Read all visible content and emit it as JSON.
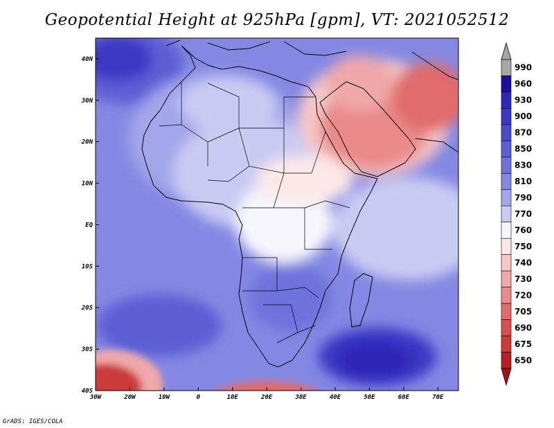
{
  "title": "Geopotential Height at 925hPa [gpm], VT: 2021052512",
  "credit": "GrADS: IGES/COLA",
  "map": {
    "lon_range": [
      -30,
      76
    ],
    "lat_range": [
      -40,
      45
    ],
    "lat_ticks": [
      {
        "value": 40,
        "label": "40N"
      },
      {
        "value": 30,
        "label": "30N"
      },
      {
        "value": 20,
        "label": "20N"
      },
      {
        "value": 10,
        "label": "10N"
      },
      {
        "value": 0,
        "label": "EQ"
      },
      {
        "value": -10,
        "label": "10S"
      },
      {
        "value": -20,
        "label": "20S"
      },
      {
        "value": -30,
        "label": "30S"
      },
      {
        "value": -40,
        "label": "40S"
      }
    ],
    "lon_ticks": [
      {
        "value": -30,
        "label": "30W"
      },
      {
        "value": -20,
        "label": "20W"
      },
      {
        "value": -10,
        "label": "10W"
      },
      {
        "value": 0,
        "label": "0"
      },
      {
        "value": 10,
        "label": "10E"
      },
      {
        "value": 20,
        "label": "20E"
      },
      {
        "value": 30,
        "label": "30E"
      },
      {
        "value": 40,
        "label": "40E"
      },
      {
        "value": 50,
        "label": "50E"
      },
      {
        "value": 60,
        "label": "60E"
      },
      {
        "value": 70,
        "label": "70E"
      }
    ]
  },
  "colorbar": {
    "levels": [
      {
        "label": "990",
        "color": "#a6a6a6"
      },
      {
        "label": "960",
        "color": "#1c0fa0"
      },
      {
        "label": "930",
        "color": "#2e28b8"
      },
      {
        "label": "900",
        "color": "#3a38c4"
      },
      {
        "label": "870",
        "color": "#4a4acc"
      },
      {
        "label": "850",
        "color": "#5b5fd4"
      },
      {
        "label": "830",
        "color": "#6e73dc"
      },
      {
        "label": "810",
        "color": "#8488e2"
      },
      {
        "label": "790",
        "color": "#a3a6ea"
      },
      {
        "label": "770",
        "color": "#c9cbf3"
      },
      {
        "label": "760",
        "color": "#f6f6fc"
      },
      {
        "label": "750",
        "color": "#fce8e8"
      },
      {
        "label": "740",
        "color": "#f6c8c8"
      },
      {
        "label": "730",
        "color": "#f0a8a8"
      },
      {
        "label": "720",
        "color": "#ea8a8a"
      },
      {
        "label": "705",
        "color": "#e06c6c"
      },
      {
        "label": "690",
        "color": "#d85050"
      },
      {
        "label": "675",
        "color": "#cc3a3a"
      },
      {
        "label": "650",
        "color": "#b81e22"
      }
    ],
    "bottom_arrow_color": "#a81010"
  }
}
